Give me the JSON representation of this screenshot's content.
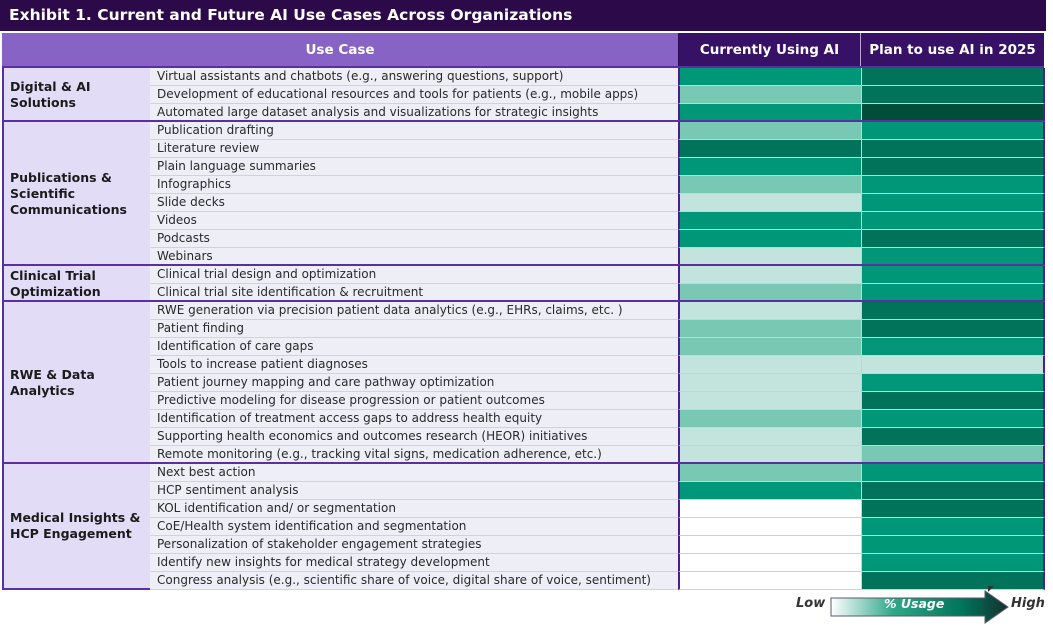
{
  "title": "Exhibit 1. Current and Future AI Use Cases Across Organizations",
  "headers": {
    "use_case": "Use Case",
    "current": "Currently Using AI",
    "plan": "Plan to use AI in 2025"
  },
  "legend": {
    "low": "Low",
    "high": "High",
    "label": "% Usage"
  },
  "colors": {
    "title_bg": "#2c0a4a",
    "header_use_bg": "#8663c4",
    "header_col_bg": "#361166",
    "group_bg": "#e3dcf7",
    "row_bg": "#eeeef6",
    "levels": [
      "#ffffff",
      "#c2e4dc",
      "#78c8b4",
      "#009678",
      "#00735a",
      "#004d3a"
    ]
  },
  "chart_data": {
    "type": "heatmap",
    "title": "Exhibit 1. Current and Future AI Use Cases Across Organizations",
    "columns": [
      "Currently Using AI",
      "Plan to use AI in 2025"
    ],
    "scale": {
      "label": "% Usage",
      "min_label": "Low",
      "max_label": "High",
      "levels": [
        0,
        1,
        2,
        3,
        4,
        5
      ]
    },
    "groups": [
      {
        "name": "Digital & AI Solutions",
        "rows": [
          {
            "label": "Virtual assistants and chatbots (e.g., answering questions, support)",
            "current": 3,
            "plan": 4
          },
          {
            "label": "Development of educational resources and tools for patients (e.g., mobile apps)",
            "current": 2,
            "plan": 4
          },
          {
            "label": "Automated large dataset analysis and visualizations for strategic insights",
            "current": 3,
            "plan": 5
          }
        ]
      },
      {
        "name": "Publications & Scientific Communications",
        "rows": [
          {
            "label": "Publication drafting",
            "current": 2,
            "plan": 3
          },
          {
            "label": "Literature review",
            "current": 4,
            "plan": 4
          },
          {
            "label": "Plain language summaries",
            "current": 3,
            "plan": 4
          },
          {
            "label": "Infographics",
            "current": 2,
            "plan": 3
          },
          {
            "label": "Slide decks",
            "current": 1,
            "plan": 3
          },
          {
            "label": "Videos",
            "current": 3,
            "plan": 3
          },
          {
            "label": "Podcasts",
            "current": 3,
            "plan": 4
          },
          {
            "label": "Webinars",
            "current": 1,
            "plan": 3
          }
        ]
      },
      {
        "name": "Clinical Trial Optimization",
        "rows": [
          {
            "label": "Clinical trial design and optimization",
            "current": 1,
            "plan": 3
          },
          {
            "label": "Clinical trial site identification & recruitment",
            "current": 2,
            "plan": 3
          }
        ]
      },
      {
        "name": "RWE & Data Analytics",
        "rows": [
          {
            "label": "RWE generation via precision patient data analytics (e.g., EHRs, claims, etc. )",
            "current": 1,
            "plan": 4
          },
          {
            "label": "Patient finding",
            "current": 2,
            "plan": 4
          },
          {
            "label": "Identification of care gaps",
            "current": 2,
            "plan": 3
          },
          {
            "label": "Tools to increase patient diagnoses",
            "current": 1,
            "plan": 1
          },
          {
            "label": "Patient journey mapping and care pathway optimization",
            "current": 1,
            "plan": 3
          },
          {
            "label": "Predictive modeling for disease progression or patient outcomes",
            "current": 1,
            "plan": 4
          },
          {
            "label": "Identification of treatment access gaps to address health equity",
            "current": 2,
            "plan": 3
          },
          {
            "label": "Supporting health economics and outcomes research (HEOR) initiatives",
            "current": 1,
            "plan": 4
          },
          {
            "label": "Remote monitoring (e.g., tracking vital signs, medication adherence, etc.)",
            "current": 1,
            "plan": 2
          }
        ]
      },
      {
        "name": "Medical Insights & HCP Engagement",
        "rows": [
          {
            "label": "Next best action",
            "current": 2,
            "plan": 3
          },
          {
            "label": "HCP sentiment analysis",
            "current": 3,
            "plan": 4
          },
          {
            "label": "KOL identification and/ or segmentation",
            "current": 0,
            "plan": 4
          },
          {
            "label": "CoE/Health system identification and segmentation",
            "current": 0,
            "plan": 3
          },
          {
            "label": "Personalization of stakeholder engagement strategies",
            "current": 0,
            "plan": 3
          },
          {
            "label": "Identify new insights for medical strategy development",
            "current": 0,
            "plan": 3
          },
          {
            "label": "Congress analysis (e.g., scientific share of voice, digital share of voice, sentiment)",
            "current": 0,
            "plan": 4
          }
        ]
      }
    ]
  }
}
